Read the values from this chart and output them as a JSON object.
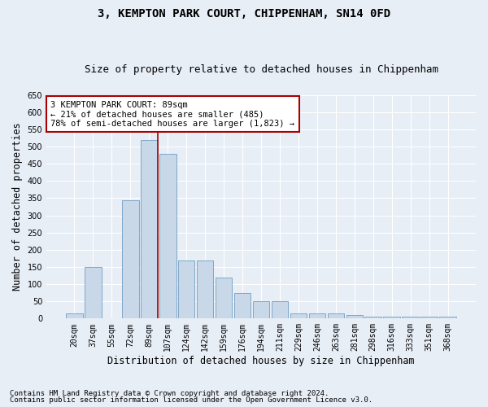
{
  "title": "3, KEMPTON PARK COURT, CHIPPENHAM, SN14 0FD",
  "subtitle": "Size of property relative to detached houses in Chippenham",
  "xlabel": "Distribution of detached houses by size in Chippenham",
  "ylabel": "Number of detached properties",
  "categories": [
    "20sqm",
    "37sqm",
    "55sqm",
    "72sqm",
    "89sqm",
    "107sqm",
    "124sqm",
    "142sqm",
    "159sqm",
    "176sqm",
    "194sqm",
    "211sqm",
    "229sqm",
    "246sqm",
    "263sqm",
    "281sqm",
    "298sqm",
    "316sqm",
    "333sqm",
    "351sqm",
    "368sqm"
  ],
  "values": [
    15,
    150,
    0,
    345,
    520,
    480,
    170,
    170,
    120,
    75,
    50,
    50,
    15,
    15,
    15,
    10,
    5,
    5,
    5,
    5,
    5
  ],
  "bar_color": "#c8d8e8",
  "bar_edge_color": "#7fa8c8",
  "highlight_index": 4,
  "highlight_line_color": "#aa0000",
  "annotation_text": "3 KEMPTON PARK COURT: 89sqm\n← 21% of detached houses are smaller (485)\n78% of semi-detached houses are larger (1,823) →",
  "annotation_box_color": "#ffffff",
  "annotation_box_edge": "#aa0000",
  "ylim": [
    0,
    650
  ],
  "yticks": [
    0,
    50,
    100,
    150,
    200,
    250,
    300,
    350,
    400,
    450,
    500,
    550,
    600,
    650
  ],
  "background_color": "#e8eef6",
  "grid_color": "#ffffff",
  "footer_line1": "Contains HM Land Registry data © Crown copyright and database right 2024.",
  "footer_line2": "Contains public sector information licensed under the Open Government Licence v3.0.",
  "title_fontsize": 10,
  "subtitle_fontsize": 9,
  "axis_label_fontsize": 8.5,
  "tick_fontsize": 7,
  "annotation_fontsize": 7.5,
  "footer_fontsize": 6.5
}
